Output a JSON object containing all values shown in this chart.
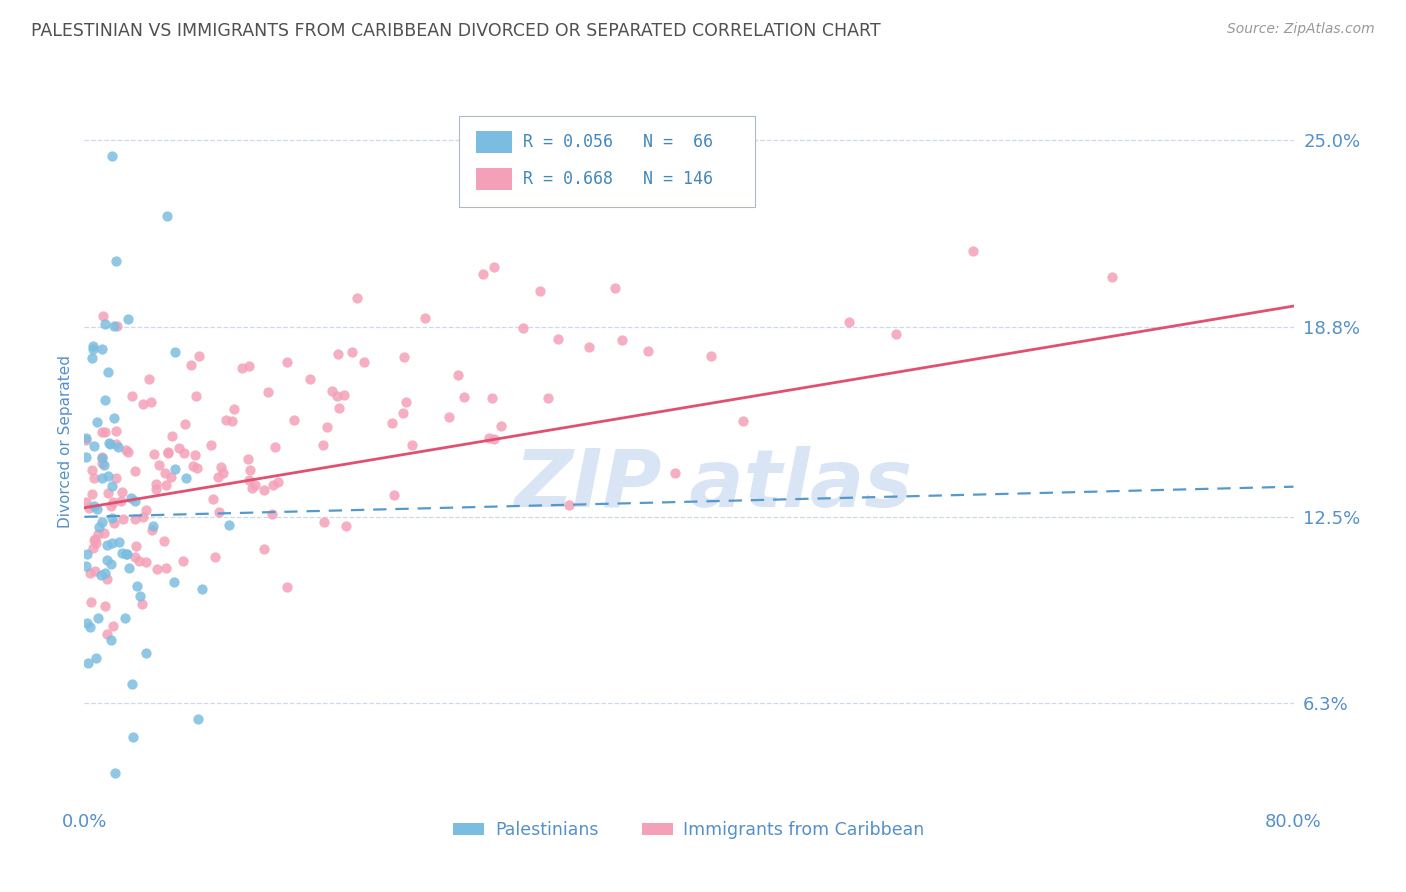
{
  "title": "PALESTINIAN VS IMMIGRANTS FROM CARIBBEAN DIVORCED OR SEPARATED CORRELATION CHART",
  "source": "Source: ZipAtlas.com",
  "ylabel": "Divorced or Separated",
  "yticks": [
    0.063,
    0.125,
    0.188,
    0.25
  ],
  "ytick_labels": [
    "6.3%",
    "12.5%",
    "18.8%",
    "25.0%"
  ],
  "xlim": [
    0.0,
    0.8
  ],
  "ylim": [
    0.03,
    0.27
  ],
  "series1_name": "Palestinians",
  "series1_color": "#7bbde0",
  "series1_R": 0.056,
  "series1_N": 66,
  "series1_trend_color": "#5599cc",
  "series2_name": "Immigrants from Caribbean",
  "series2_color": "#f4a0b8",
  "series2_R": 0.668,
  "series2_N": 146,
  "series2_trend_color": "#e05070",
  "background_color": "#ffffff",
  "grid_color": "#c8d4e8",
  "title_color": "#505050",
  "tick_label_color": "#5590c8",
  "watermark_color": "#c0d4ee",
  "legend_text_color": "#4488bb",
  "trend1_x0": 0.0,
  "trend1_y0": 0.125,
  "trend1_x1": 0.8,
  "trend1_y1": 0.135,
  "trend2_x0": 0.0,
  "trend2_y0": 0.128,
  "trend2_x1": 0.8,
  "trend2_y1": 0.195
}
